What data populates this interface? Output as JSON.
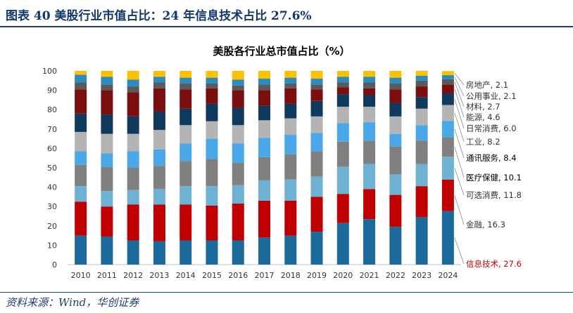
{
  "figure": {
    "title": "图表 40 美股行业市值占比：24 年信息技术占比 27.6%",
    "source": "资料来源：Wind，华创证券"
  },
  "chart_data": {
    "type": "bar",
    "stacked": true,
    "title": "美股各行业总市值占比（%）",
    "xlabel": "",
    "ylabel": "",
    "ylim": [
      0,
      100
    ],
    "yticks": [
      0,
      10,
      20,
      30,
      40,
      50,
      60,
      70,
      80,
      90,
      100
    ],
    "grid": false,
    "legend": "right",
    "categories": [
      "2010",
      "2011",
      "2012",
      "2013",
      "2014",
      "2015",
      "2016",
      "2017",
      "2018",
      "2019",
      "2020",
      "2021",
      "2022",
      "2023",
      "2024"
    ],
    "series": [
      {
        "name": "信息技术",
        "label": "信息技术, 27.6",
        "color": "#1c6a9b",
        "label_color": "#c00000",
        "values": [
          15,
          14.5,
          12.5,
          12,
          12.5,
          12.5,
          12.5,
          14,
          15,
          17,
          21.5,
          23.5,
          19.5,
          24.5,
          27.6
        ]
      },
      {
        "name": "金融",
        "label": "金融, 16.3",
        "color": "#c00000",
        "label_color": "#333333",
        "values": [
          17.5,
          15.5,
          18.5,
          19,
          18.5,
          18,
          19,
          19,
          18,
          18,
          15,
          15.5,
          16.5,
          16,
          16.3
        ]
      },
      {
        "name": "可选消费",
        "label": "可选消费, 11.8",
        "color": "#6fb1d3",
        "label_color": "#333333",
        "values": [
          8,
          8,
          7.5,
          8,
          9.5,
          10,
          9.5,
          10.5,
          11,
          10.5,
          14,
          13,
          10.5,
          11.5,
          11.8
        ]
      },
      {
        "name": "医疗保健",
        "label": "医疗保健, 10.1",
        "color": "#808080",
        "label_color": "#000000",
        "values": [
          11,
          12.5,
          11.5,
          12,
          13,
          14,
          11.5,
          12,
          13,
          13,
          13,
          12,
          14.5,
          12,
          10.1
        ]
      },
      {
        "name": "通讯服务",
        "label": "通讯服务, 8.4",
        "color": "#4aa8e8",
        "label_color": "#000000",
        "values": [
          7,
          7,
          8.5,
          8.5,
          9,
          10.5,
          10,
          10,
          10,
          9.5,
          9.5,
          9.5,
          6.5,
          8,
          8.4
        ]
      },
      {
        "name": "工业",
        "label": "工业, 8.2",
        "color": "#b4b4b4",
        "label_color": "#333333",
        "values": [
          10,
          10,
          9,
          10,
          9.5,
          9,
          9.5,
          9,
          8.5,
          8.5,
          8.5,
          8,
          9,
          8.5,
          8.2
        ]
      },
      {
        "name": "日常消费",
        "label": "日常消费, 6.0",
        "color": "#0f3a5e",
        "label_color": "#333333",
        "values": [
          9.5,
          10,
          9,
          9.5,
          8.5,
          9,
          9,
          7.5,
          7.5,
          8,
          6.5,
          6,
          7,
          6,
          6
        ]
      },
      {
        "name": "能源",
        "label": "能源, 4.6",
        "color": "#7b0e0e",
        "label_color": "#333333",
        "values": [
          12.5,
          12.5,
          12.5,
          12,
          10,
          8,
          9,
          8,
          8,
          6,
          3.5,
          3.5,
          7,
          5.5,
          4.6
        ]
      },
      {
        "name": "材料",
        "label": "材料, 2.7",
        "color": "#5a5a5a",
        "label_color": "#333333",
        "values": [
          3.5,
          3,
          3,
          3,
          3,
          2.5,
          2.5,
          3,
          2.5,
          2.5,
          2.5,
          3,
          3,
          3,
          2.7
        ]
      },
      {
        "name": "公用事业",
        "label": "公用事业, 2.1",
        "color": "#2b8cbf",
        "label_color": "#333333",
        "values": [
          4,
          4,
          3.5,
          3,
          3,
          3,
          3,
          3,
          3,
          3,
          3,
          3,
          3,
          2.5,
          2.1
        ]
      },
      {
        "name": "房地产",
        "label": "房地产, 2.1",
        "color": "#ffc000",
        "label_color": "#333333",
        "values": [
          3,
          3,
          4.5,
          3,
          3.5,
          3.5,
          4.5,
          4,
          3.5,
          4,
          3,
          3,
          3.5,
          2.5,
          2.1
        ]
      }
    ]
  }
}
